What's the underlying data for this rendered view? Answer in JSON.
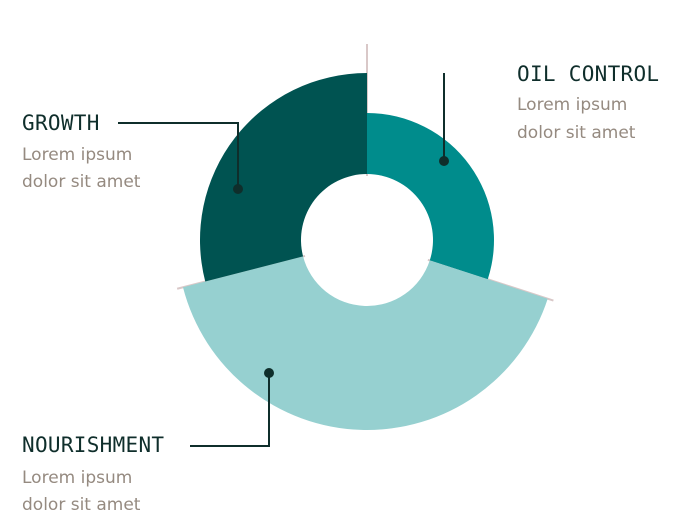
{
  "chart_data": {
    "type": "pie",
    "style": "exploded-donut",
    "slices": [
      {
        "label": "OIL CONTROL",
        "description_line1": "Lorem ipsum",
        "description_line2": "dolor sit amet",
        "value": 30,
        "color": "#008c8c"
      },
      {
        "label": "NOURISHMENT",
        "description_line1": "Lorem ipsum",
        "description_line2": "dolor sit amet",
        "value": 41,
        "color": "#96d0d0"
      },
      {
        "label": "GROWTH",
        "description_line1": "Lorem ipsum",
        "description_line2": "dolor sit amet",
        "value": 29,
        "color": "#005351"
      }
    ],
    "separator_color": "#d9c8c8",
    "connector_color": "#0f2e2b"
  }
}
